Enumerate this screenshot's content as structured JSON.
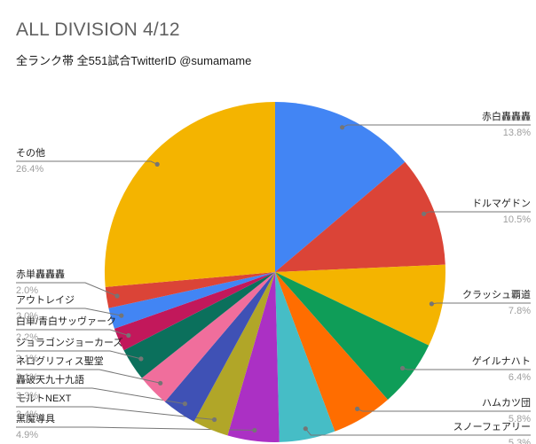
{
  "header": {
    "title": "ALL DIVISION 4/12",
    "subtitle": "全ランク帯 全551試合TwitterID @sumamame"
  },
  "chart_data": {
    "type": "pie",
    "title": "ALL DIVISION 4/12",
    "subtitle": "全ランク帯 全551試合TwitterID @sumamame",
    "unit": "%",
    "start_angle_deg": 0,
    "direction": "clockwise",
    "legend_position": "outside-callout-labels",
    "label_format": "name above leader line, percentage below",
    "slices": [
      {
        "label": "赤白轟轟轟",
        "value": 13.8,
        "color": "#4285F4"
      },
      {
        "label": "ドルマゲドン",
        "value": 10.5,
        "color": "#DB4437"
      },
      {
        "label": "クラッシュ覇道",
        "value": 7.8,
        "color": "#F4B400"
      },
      {
        "label": "ゲイルナハト",
        "value": 6.4,
        "color": "#0F9D58"
      },
      {
        "label": "ハムカツ団",
        "value": 5.8,
        "color": "#FF6D00"
      },
      {
        "label": "スノーフェアリー",
        "value": 5.3,
        "color": "#46BDC6"
      },
      {
        "label": "黒魔導具",
        "value": 4.9,
        "color": "#AB30C4"
      },
      {
        "label": "モルトNEXT",
        "value": 3.4,
        "color": "#B1A628"
      },
      {
        "label": "轟破天九十九語",
        "value": 3.3,
        "color": "#3F51B5"
      },
      {
        "label": "ネログリフィス聖堂",
        "value": 3.1,
        "color": "#F06E9C"
      },
      {
        "label": "ジョラゴンジョーカーズ",
        "value": 3.1,
        "color": "#0B705C"
      },
      {
        "label": "白単/青白サッヴァーク",
        "value": 2.2,
        "color": "#C2185B"
      },
      {
        "label": "アウトレイジ",
        "value": 2.0,
        "color": "#4285F4"
      },
      {
        "label": "赤単轟轟轟",
        "value": 2.0,
        "color": "#DB4437"
      },
      {
        "label": "その他",
        "value": 26.4,
        "color": "#F4B400"
      }
    ],
    "colors": {
      "leader_line": "#757575",
      "leader_dot": "#757575",
      "label_text": "#212121",
      "percent_text": "#9E9E9E",
      "title_text": "#616161",
      "background": "#FFFFFF"
    }
  }
}
